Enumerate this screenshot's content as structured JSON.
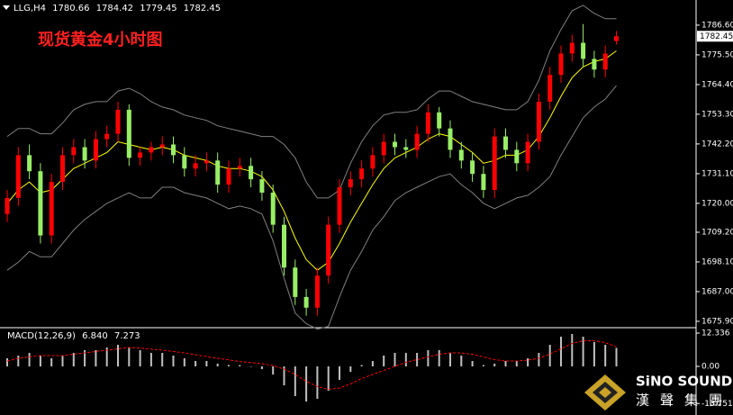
{
  "header": {
    "symbol": "LLG,H4"
  },
  "title": "现货黄金4小时图",
  "logo": {
    "name": "SiNO SOUND",
    "chinese": "漢聲集團"
  },
  "chart_data": [
    {
      "type": "candlestick",
      "up_color": "#ff0000",
      "down_color": "#99ee66",
      "open": [
        1716,
        1722,
        1738,
        1732,
        1708,
        1728,
        1738,
        1741,
        1736,
        1744,
        1746,
        1755,
        1737,
        1739,
        1741,
        1742,
        1738,
        1733,
        1735,
        1736,
        1727,
        1733,
        1734,
        1729,
        1724,
        1712,
        1696,
        1685,
        1681,
        1693,
        1712,
        1726,
        1729,
        1733,
        1738,
        1743,
        1741,
        1740,
        1746,
        1754,
        1748,
        1740,
        1736,
        1731,
        1725,
        1745,
        1740,
        1735,
        1743,
        1758,
        1768,
        1776,
        1780,
        1774,
        1770,
        1780.66
      ],
      "high": [
        1725,
        1741,
        1742,
        1735,
        1731,
        1741,
        1744,
        1744,
        1747,
        1749,
        1758,
        1757,
        1741,
        1743,
        1745,
        1745,
        1741,
        1738,
        1739,
        1739,
        1736,
        1737,
        1737,
        1732,
        1727,
        1715,
        1699,
        1688,
        1696,
        1715,
        1729,
        1732,
        1736,
        1741,
        1746,
        1746,
        1744,
        1749,
        1757,
        1756,
        1751,
        1743,
        1739,
        1734,
        1748,
        1748,
        1743,
        1746,
        1761,
        1771,
        1779,
        1783,
        1787,
        1777,
        1779,
        1784.42
      ],
      "low": [
        1713,
        1719,
        1729,
        1705,
        1705,
        1725,
        1735,
        1733,
        1733,
        1741,
        1743,
        1734,
        1734,
        1736,
        1738,
        1735,
        1730,
        1730,
        1732,
        1724,
        1724,
        1730,
        1726,
        1721,
        1709,
        1693,
        1682,
        1678,
        1678,
        1690,
        1709,
        1723,
        1726,
        1730,
        1735,
        1738,
        1737,
        1737,
        1743,
        1745,
        1737,
        1733,
        1728,
        1722,
        1722,
        1737,
        1732,
        1732,
        1740,
        1755,
        1765,
        1773,
        1771,
        1767,
        1767,
        1779.45
      ],
      "close": [
        1722,
        1738,
        1732,
        1708,
        1728,
        1738,
        1741,
        1736,
        1744,
        1746,
        1755,
        1737,
        1739,
        1741,
        1742,
        1738,
        1733,
        1735,
        1736,
        1727,
        1733,
        1734,
        1729,
        1724,
        1712,
        1696,
        1685,
        1681,
        1693,
        1712,
        1726,
        1729,
        1733,
        1738,
        1743,
        1741,
        1740,
        1746,
        1754,
        1748,
        1740,
        1736,
        1731,
        1725,
        1745,
        1740,
        1735,
        1743,
        1758,
        1768,
        1776,
        1780,
        1774,
        1770,
        1776,
        1782.45
      ],
      "overlays": [
        {
          "color": "#808080",
          "values": [
            1745,
            1748,
            1748,
            1746,
            1746,
            1750,
            1755,
            1757,
            1758,
            1758,
            1762,
            1763,
            1761,
            1758,
            1756,
            1755,
            1753,
            1752,
            1751,
            1749,
            1748,
            1747,
            1746,
            1745,
            1745,
            1742,
            1737,
            1728,
            1722,
            1722,
            1725,
            1735,
            1743,
            1749,
            1753,
            1754,
            1754,
            1755,
            1759,
            1762,
            1762,
            1760,
            1758,
            1757,
            1756,
            1755,
            1755,
            1758,
            1766,
            1777,
            1785,
            1792,
            1794,
            1791,
            1789,
            1789
          ]
        },
        {
          "color": "#808080",
          "values": [
            1695,
            1698,
            1702,
            1700,
            1700,
            1705,
            1710,
            1714,
            1717,
            1720,
            1722,
            1724,
            1722,
            1722,
            1726,
            1726,
            1724,
            1723,
            1722,
            1720,
            1718,
            1719,
            1718,
            1716,
            1706,
            1692,
            1679,
            1675,
            1673,
            1674,
            1685,
            1695,
            1702,
            1710,
            1715,
            1721,
            1724,
            1726,
            1728,
            1730,
            1731,
            1727,
            1724,
            1720,
            1718,
            1720,
            1722,
            1723,
            1726,
            1730,
            1738,
            1745,
            1752,
            1756,
            1759,
            1764
          ]
        },
        {
          "color": "#ffff00",
          "values": [
            1720,
            1725,
            1728,
            1724,
            1725,
            1729,
            1733,
            1735,
            1737,
            1739,
            1743,
            1742,
            1741,
            1740,
            1741,
            1740,
            1738,
            1737,
            1736,
            1734,
            1733,
            1733,
            1732,
            1730,
            1725,
            1717,
            1707,
            1699,
            1695,
            1698,
            1705,
            1713,
            1720,
            1727,
            1733,
            1737,
            1739,
            1741,
            1744,
            1746,
            1745,
            1742,
            1739,
            1735,
            1736,
            1738,
            1738,
            1740,
            1745,
            1752,
            1760,
            1767,
            1771,
            1773,
            1774,
            1777
          ]
        }
      ],
      "ylim": [
        1674.2,
        1796.0
      ],
      "yticks": [
        {
          "value": 1786.6,
          "label": "1786.60"
        },
        {
          "value": 1775.5,
          "label": "1775.50"
        },
        {
          "value": 1764.4,
          "label": "1764.40"
        },
        {
          "value": 1753.3,
          "label": "1753.30"
        },
        {
          "value": 1742.2,
          "label": "1742.20"
        },
        {
          "value": 1731.1,
          "label": "1731.10"
        },
        {
          "value": 1720,
          "label": "1720.00"
        },
        {
          "value": 1709.2,
          "label": "1709.20"
        },
        {
          "value": 1698.1,
          "label": "1698.10"
        },
        {
          "value": 1687,
          "label": "1687.00"
        },
        {
          "value": 1675.9,
          "label": "1675.90"
        }
      ]
    },
    {
      "type": "macd",
      "label": "MACD(12,26,9)",
      "series": [
        {
          "color": "#c0c0c0",
          "values": [
            3,
            4,
            5,
            4,
            3,
            4,
            5,
            6,
            6,
            7,
            8,
            7,
            6,
            5,
            5,
            4,
            3,
            2,
            2,
            1,
            0.5,
            0.5,
            0,
            -1,
            -3,
            -7,
            -11,
            -13,
            -12,
            -9,
            -5,
            -2,
            0.5,
            2,
            4,
            5,
            5,
            5,
            6,
            6,
            5,
            4,
            2,
            0.5,
            1,
            2,
            2,
            3,
            5,
            8,
            11,
            12,
            11,
            9,
            8,
            6.84
          ],
          "value_labels": [
            null,
            null,
            null,
            null,
            null,
            null,
            null,
            null,
            null,
            null,
            null,
            null,
            null,
            null,
            null,
            null,
            null,
            null,
            null,
            null,
            null,
            null,
            null,
            null,
            null,
            null,
            null,
            null,
            null,
            null,
            null,
            null,
            null,
            null,
            null,
            null,
            null,
            null,
            null,
            null,
            null,
            null,
            null,
            null,
            null,
            null,
            null,
            null,
            null,
            null,
            null,
            null,
            null,
            null,
            null,
            "6.840"
          ]
        },
        {
          "color": "#ff0000",
          "values": [
            2,
            3,
            3.5,
            4,
            4,
            4,
            4.5,
            5,
            5.5,
            6,
            6.5,
            7,
            6.8,
            6.4,
            6,
            5.5,
            5,
            4.3,
            3.6,
            3,
            2.4,
            1.8,
            1.4,
            1,
            0.3,
            -1,
            -3,
            -5.5,
            -7.5,
            -8.5,
            -8,
            -6.5,
            -4.5,
            -3,
            -1.5,
            0,
            1.5,
            2.5,
            3.5,
            4.5,
            5,
            5,
            4.5,
            3.5,
            2.5,
            2,
            2,
            2.3,
            3,
            4.5,
            6.5,
            8.5,
            9.5,
            9.5,
            8.8,
            7.273
          ]
        }
      ],
      "ylim": [
        -17.0,
        13.67
      ],
      "yticks": [
        12.336,
        {
          "value": 0,
          "label": "0.00"
        },
        -13.751
      ]
    }
  ]
}
